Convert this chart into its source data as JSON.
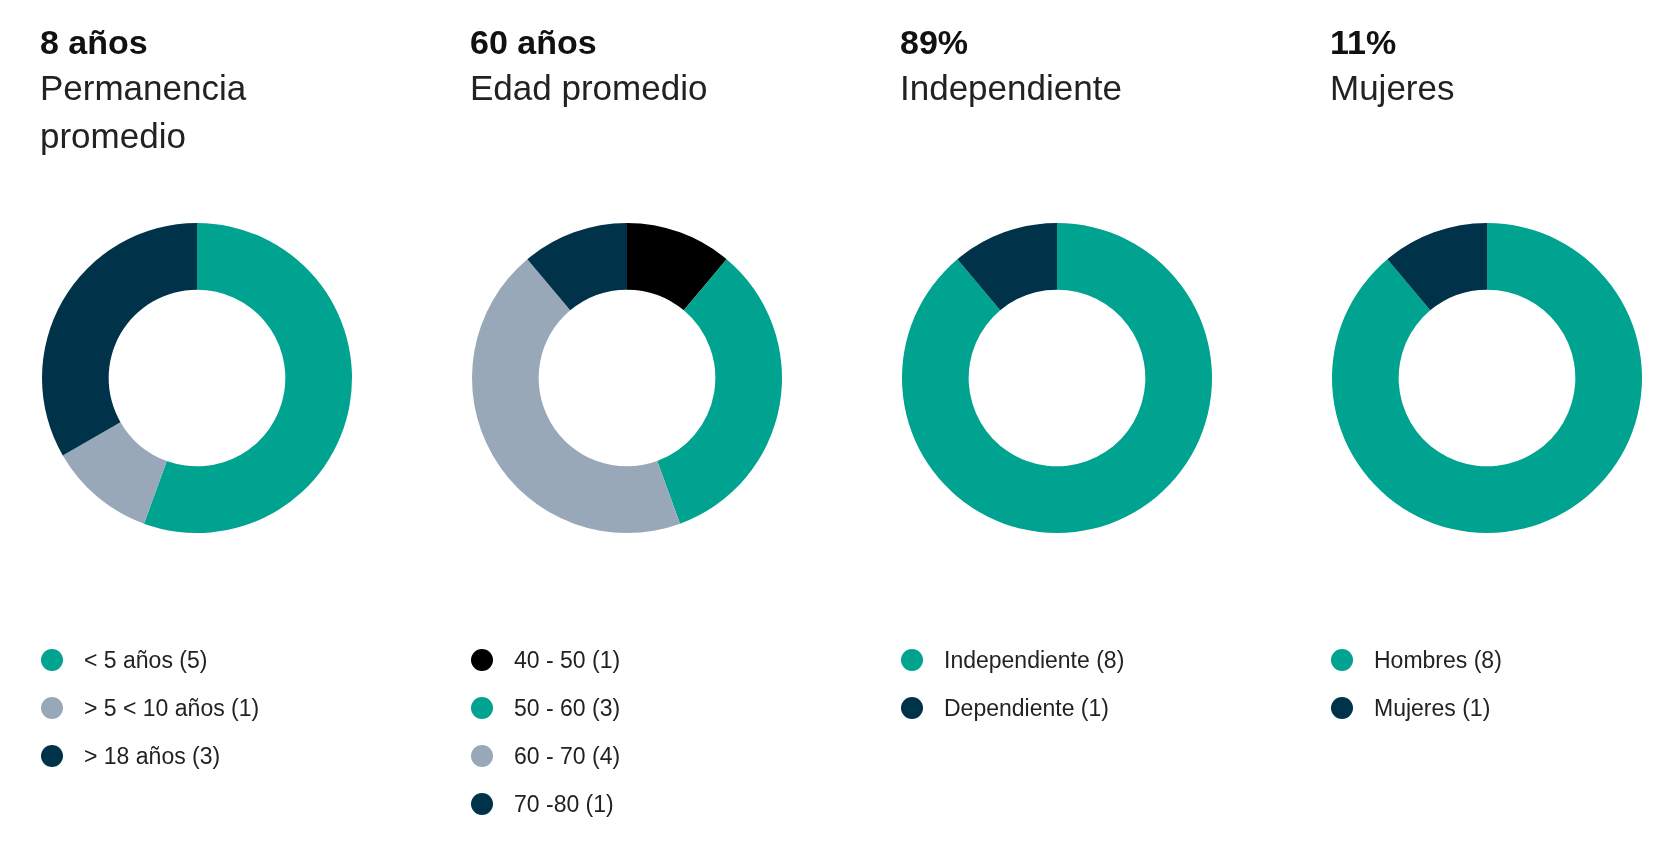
{
  "chart_data": [
    {
      "type": "donut",
      "title": "8 años",
      "subtitle": "Permanencia promedio",
      "categories": [
        "< 5 años (5)",
        "> 5 < 10 años (1)",
        "> 18 años (3)"
      ],
      "values": [
        5,
        1,
        3
      ],
      "colors": [
        "#00a38f",
        "#98a8b8",
        "#003349"
      ],
      "legend": "bottom"
    },
    {
      "type": "donut",
      "title": "60 años",
      "subtitle": "Edad promedio",
      "categories": [
        "40 - 50 (1)",
        "50 - 60 (3)",
        "60 - 70 (4)",
        "70 -80 (1)"
      ],
      "values": [
        1,
        3,
        4,
        1
      ],
      "colors": [
        "#000000",
        "#00a38f",
        "#98a8b8",
        "#003349"
      ],
      "legend": "bottom"
    },
    {
      "type": "donut",
      "title": "89%",
      "subtitle": "Independiente",
      "categories": [
        "Independiente (8)",
        "Dependiente (1)"
      ],
      "values": [
        8,
        1
      ],
      "colors": [
        "#00a38f",
        "#003349"
      ],
      "legend": "bottom"
    },
    {
      "type": "donut",
      "title": "11%",
      "subtitle": "Mujeres",
      "categories": [
        "Hombres (8)",
        "Mujeres (1)"
      ],
      "values": [
        8,
        1
      ],
      "colors": [
        "#00a38f",
        "#003349"
      ],
      "legend": "bottom"
    }
  ]
}
